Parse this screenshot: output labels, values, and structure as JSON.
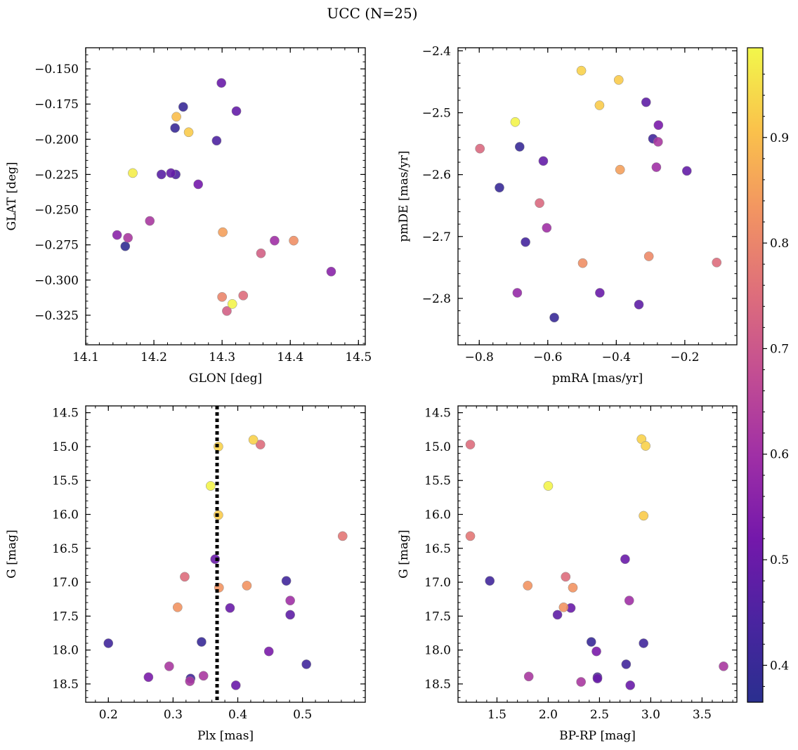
{
  "figure": {
    "title": "UCC (N=25)"
  },
  "colorbar": {
    "range": [
      0.365,
      0.985
    ],
    "ticks": [
      0.4,
      0.5,
      0.6,
      0.7,
      0.8,
      0.9
    ],
    "tick_labels": [
      "0.4",
      "0.5",
      "0.6",
      "0.7",
      "0.8",
      "0.9"
    ],
    "colormap": "plasma"
  },
  "chart_data": [
    {
      "type": "scatter",
      "xlabel": "GLON [deg]",
      "ylabel": "GLAT [deg]",
      "xlim": [
        14.1,
        14.51
      ],
      "ylim": [
        -0.346,
        -0.135
      ],
      "y_inverted": false,
      "xticks": [
        14.1,
        14.2,
        14.3,
        14.4,
        14.5
      ],
      "xtick_labels": [
        "14.1",
        "14.2",
        "14.3",
        "14.4",
        "14.5"
      ],
      "yticks": [
        -0.15,
        -0.175,
        -0.2,
        -0.225,
        -0.25,
        -0.275,
        -0.3,
        -0.325
      ],
      "ytick_labels": [
        "−0.150",
        "−0.175",
        "−0.200",
        "−0.225",
        "−0.250",
        "−0.275",
        "−0.300",
        "−0.325"
      ],
      "points": [
        {
          "x": 14.299,
          "y": -0.16,
          "c": 0.5
        },
        {
          "x": 14.321,
          "y": -0.18,
          "c": 0.49
        },
        {
          "x": 14.243,
          "y": -0.177,
          "c": 0.4
        },
        {
          "x": 14.231,
          "y": -0.192,
          "c": 0.4
        },
        {
          "x": 14.233,
          "y": -0.184,
          "c": 0.9
        },
        {
          "x": 14.251,
          "y": -0.195,
          "c": 0.92
        },
        {
          "x": 14.292,
          "y": -0.201,
          "c": 0.45
        },
        {
          "x": 14.169,
          "y": -0.224,
          "c": 0.97
        },
        {
          "x": 14.211,
          "y": -0.225,
          "c": 0.47
        },
        {
          "x": 14.225,
          "y": -0.224,
          "c": 0.49
        },
        {
          "x": 14.232,
          "y": -0.225,
          "c": 0.45
        },
        {
          "x": 14.265,
          "y": -0.232,
          "c": 0.52
        },
        {
          "x": 14.194,
          "y": -0.258,
          "c": 0.62
        },
        {
          "x": 14.146,
          "y": -0.268,
          "c": 0.56
        },
        {
          "x": 14.162,
          "y": -0.27,
          "c": 0.62
        },
        {
          "x": 14.158,
          "y": -0.276,
          "c": 0.38
        },
        {
          "x": 14.301,
          "y": -0.266,
          "c": 0.85
        },
        {
          "x": 14.377,
          "y": -0.272,
          "c": 0.6
        },
        {
          "x": 14.405,
          "y": -0.272,
          "c": 0.82
        },
        {
          "x": 14.357,
          "y": -0.281,
          "c": 0.72
        },
        {
          "x": 14.46,
          "y": -0.294,
          "c": 0.56
        },
        {
          "x": 14.3,
          "y": -0.312,
          "c": 0.8
        },
        {
          "x": 14.331,
          "y": -0.311,
          "c": 0.75
        },
        {
          "x": 14.315,
          "y": -0.317,
          "c": 0.98
        },
        {
          "x": 14.307,
          "y": -0.322,
          "c": 0.72
        }
      ]
    },
    {
      "type": "scatter",
      "xlabel": "pmRA [mas/yr]",
      "ylabel": "pmDE [mas/yr]",
      "xlim": [
        -0.862,
        -0.048
      ],
      "ylim": [
        -2.875,
        -2.395
      ],
      "y_inverted": false,
      "xticks": [
        -0.8,
        -0.6,
        -0.4,
        -0.2
      ],
      "xtick_labels": [
        "−0.8",
        "−0.6",
        "−0.4",
        "−0.2"
      ],
      "yticks": [
        -2.4,
        -2.5,
        -2.6,
        -2.7,
        -2.8
      ],
      "ytick_labels": [
        "−2.4",
        "−2.5",
        "−2.6",
        "−2.7",
        "−2.8"
      ],
      "points": [
        {
          "x": -0.502,
          "y": -2.432,
          "c": 0.93
        },
        {
          "x": -0.393,
          "y": -2.447,
          "c": 0.92
        },
        {
          "x": -0.449,
          "y": -2.488,
          "c": 0.92
        },
        {
          "x": -0.313,
          "y": -2.483,
          "c": 0.48
        },
        {
          "x": -0.695,
          "y": -2.515,
          "c": 0.98
        },
        {
          "x": -0.277,
          "y": -2.52,
          "c": 0.53
        },
        {
          "x": -0.293,
          "y": -2.542,
          "c": 0.42
        },
        {
          "x": -0.278,
          "y": -2.547,
          "c": 0.62
        },
        {
          "x": -0.798,
          "y": -2.558,
          "c": 0.74
        },
        {
          "x": -0.682,
          "y": -2.555,
          "c": 0.4
        },
        {
          "x": -0.613,
          "y": -2.578,
          "c": 0.49
        },
        {
          "x": -0.283,
          "y": -2.588,
          "c": 0.6
        },
        {
          "x": -0.194,
          "y": -2.594,
          "c": 0.49
        },
        {
          "x": -0.389,
          "y": -2.592,
          "c": 0.85
        },
        {
          "x": -0.741,
          "y": -2.621,
          "c": 0.4
        },
        {
          "x": -0.624,
          "y": -2.646,
          "c": 0.74
        },
        {
          "x": -0.603,
          "y": -2.686,
          "c": 0.6
        },
        {
          "x": -0.665,
          "y": -2.709,
          "c": 0.43
        },
        {
          "x": -0.305,
          "y": -2.732,
          "c": 0.81
        },
        {
          "x": -0.498,
          "y": -2.743,
          "c": 0.82
        },
        {
          "x": -0.107,
          "y": -2.742,
          "c": 0.75
        },
        {
          "x": -0.689,
          "y": -2.791,
          "c": 0.58
        },
        {
          "x": -0.448,
          "y": -2.791,
          "c": 0.5
        },
        {
          "x": -0.334,
          "y": -2.81,
          "c": 0.48
        },
        {
          "x": -0.581,
          "y": -2.831,
          "c": 0.4
        }
      ]
    },
    {
      "type": "scatter",
      "xlabel": "Plx [mas]",
      "ylabel": "G [mag]",
      "xlim": [
        0.165,
        0.597
      ],
      "ylim": [
        18.77,
        14.4
      ],
      "y_inverted": true,
      "xticks": [
        0.2,
        0.3,
        0.4,
        0.5
      ],
      "xtick_labels": [
        "0.2",
        "0.3",
        "0.4",
        "0.5"
      ],
      "yticks": [
        14.5,
        15.0,
        15.5,
        16.0,
        16.5,
        17.0,
        17.5,
        18.0,
        18.5
      ],
      "ytick_labels": [
        "14.5",
        "15.0",
        "15.5",
        "16.0",
        "16.5",
        "17.0",
        "17.5",
        "18.0",
        "18.5"
      ],
      "vline": {
        "x": 0.368,
        "style": "dotted",
        "color": "#000000"
      },
      "points": [
        {
          "x": 0.424,
          "y": 14.9,
          "c": 0.93
        },
        {
          "x": 0.435,
          "y": 14.97,
          "c": 0.75
        },
        {
          "x": 0.37,
          "y": 15.0,
          "c": 0.93
        },
        {
          "x": 0.358,
          "y": 15.58,
          "c": 0.98
        },
        {
          "x": 0.37,
          "y": 16.01,
          "c": 0.92
        },
        {
          "x": 0.562,
          "y": 16.32,
          "c": 0.77
        },
        {
          "x": 0.365,
          "y": 16.66,
          "c": 0.5
        },
        {
          "x": 0.318,
          "y": 16.92,
          "c": 0.75
        },
        {
          "x": 0.475,
          "y": 16.98,
          "c": 0.42
        },
        {
          "x": 0.414,
          "y": 17.05,
          "c": 0.83
        },
        {
          "x": 0.371,
          "y": 17.08,
          "c": 0.83
        },
        {
          "x": 0.481,
          "y": 17.27,
          "c": 0.6
        },
        {
          "x": 0.307,
          "y": 17.37,
          "c": 0.83
        },
        {
          "x": 0.388,
          "y": 17.38,
          "c": 0.5
        },
        {
          "x": 0.481,
          "y": 17.48,
          "c": 0.48
        },
        {
          "x": 0.2,
          "y": 17.9,
          "c": 0.42
        },
        {
          "x": 0.344,
          "y": 17.88,
          "c": 0.4
        },
        {
          "x": 0.448,
          "y": 18.02,
          "c": 0.53
        },
        {
          "x": 0.506,
          "y": 18.21,
          "c": 0.42
        },
        {
          "x": 0.294,
          "y": 18.24,
          "c": 0.62
        },
        {
          "x": 0.262,
          "y": 18.4,
          "c": 0.53
        },
        {
          "x": 0.327,
          "y": 18.42,
          "c": 0.42
        },
        {
          "x": 0.347,
          "y": 18.38,
          "c": 0.62
        },
        {
          "x": 0.326,
          "y": 18.46,
          "c": 0.62
        },
        {
          "x": 0.397,
          "y": 18.52,
          "c": 0.5
        }
      ]
    },
    {
      "type": "scatter",
      "xlabel": "BP-RP [mag]",
      "ylabel": "G [mag]",
      "xlim": [
        1.12,
        3.84
      ],
      "ylim": [
        18.77,
        14.4
      ],
      "y_inverted": true,
      "xticks": [
        1.5,
        2.0,
        2.5,
        3.0,
        3.5
      ],
      "xtick_labels": [
        "1.5",
        "2.0",
        "2.5",
        "3.0",
        "3.5"
      ],
      "yticks": [
        14.5,
        15.0,
        15.5,
        16.0,
        16.5,
        17.0,
        17.5,
        18.0,
        18.5
      ],
      "ytick_labels": [
        "14.5",
        "15.0",
        "15.5",
        "16.0",
        "16.5",
        "17.0",
        "17.5",
        "18.0",
        "18.5"
      ],
      "points": [
        {
          "x": 2.91,
          "y": 14.89,
          "c": 0.93
        },
        {
          "x": 2.95,
          "y": 14.99,
          "c": 0.93
        },
        {
          "x": 1.24,
          "y": 14.97,
          "c": 0.75
        },
        {
          "x": 2.0,
          "y": 15.58,
          "c": 0.98
        },
        {
          "x": 2.93,
          "y": 16.02,
          "c": 0.92
        },
        {
          "x": 1.24,
          "y": 16.32,
          "c": 0.77
        },
        {
          "x": 2.75,
          "y": 16.66,
          "c": 0.5
        },
        {
          "x": 2.17,
          "y": 16.92,
          "c": 0.75
        },
        {
          "x": 1.43,
          "y": 16.98,
          "c": 0.42
        },
        {
          "x": 1.8,
          "y": 17.05,
          "c": 0.83
        },
        {
          "x": 2.24,
          "y": 17.08,
          "c": 0.83
        },
        {
          "x": 2.79,
          "y": 17.27,
          "c": 0.6
        },
        {
          "x": 2.15,
          "y": 17.37,
          "c": 0.83
        },
        {
          "x": 2.22,
          "y": 17.38,
          "c": 0.5
        },
        {
          "x": 2.09,
          "y": 17.48,
          "c": 0.48
        },
        {
          "x": 2.42,
          "y": 17.88,
          "c": 0.4
        },
        {
          "x": 2.93,
          "y": 17.9,
          "c": 0.42
        },
        {
          "x": 2.47,
          "y": 18.02,
          "c": 0.53
        },
        {
          "x": 2.76,
          "y": 18.21,
          "c": 0.42
        },
        {
          "x": 3.71,
          "y": 18.24,
          "c": 0.62
        },
        {
          "x": 1.81,
          "y": 18.39,
          "c": 0.62
        },
        {
          "x": 2.48,
          "y": 18.4,
          "c": 0.42
        },
        {
          "x": 2.48,
          "y": 18.42,
          "c": 0.5
        },
        {
          "x": 2.32,
          "y": 18.47,
          "c": 0.62
        },
        {
          "x": 2.8,
          "y": 18.52,
          "c": 0.5
        }
      ]
    }
  ]
}
